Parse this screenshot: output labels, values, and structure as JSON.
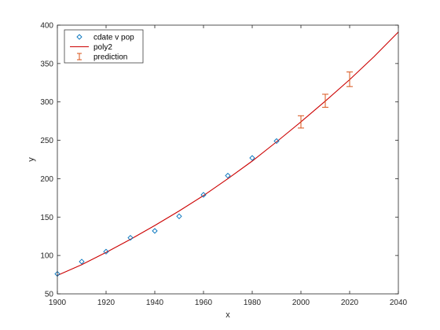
{
  "chart_data": {
    "type": "scatter",
    "title": "",
    "xlabel": "x",
    "ylabel": "y",
    "xlim": [
      1900,
      2040
    ],
    "ylim": [
      50,
      400
    ],
    "xticks": [
      1900,
      1920,
      1940,
      1960,
      1980,
      2000,
      2020,
      2040
    ],
    "yticks": [
      50,
      100,
      150,
      200,
      250,
      300,
      350,
      400
    ],
    "grid": false,
    "legend_placement": "top-left",
    "series": [
      {
        "name": "cdate v pop",
        "kind": "markers",
        "marker": "diamond",
        "color": "#0072bd",
        "x": [
          1900,
          1910,
          1920,
          1930,
          1940,
          1950,
          1960,
          1970,
          1980,
          1990
        ],
        "y": [
          76,
          92,
          105,
          123,
          132,
          151,
          179,
          204,
          227,
          249
        ]
      },
      {
        "name": "poly2",
        "kind": "line",
        "color": "#cc0000",
        "x": [
          1900,
          1910,
          1920,
          1930,
          1940,
          1950,
          1960,
          1970,
          1980,
          1990,
          2000,
          2010,
          2020,
          2030,
          2040
        ],
        "y": [
          74,
          88,
          104,
          121,
          139,
          158,
          178,
          200,
          223,
          248,
          274,
          301,
          329,
          359,
          391
        ]
      },
      {
        "name": "prediction",
        "kind": "errorbar",
        "color": "#d95319",
        "x": [
          2000,
          2010,
          2020
        ],
        "y": [
          274,
          301,
          329
        ],
        "lower": [
          266,
          293,
          320
        ],
        "upper": [
          282,
          310,
          339
        ]
      }
    ]
  }
}
